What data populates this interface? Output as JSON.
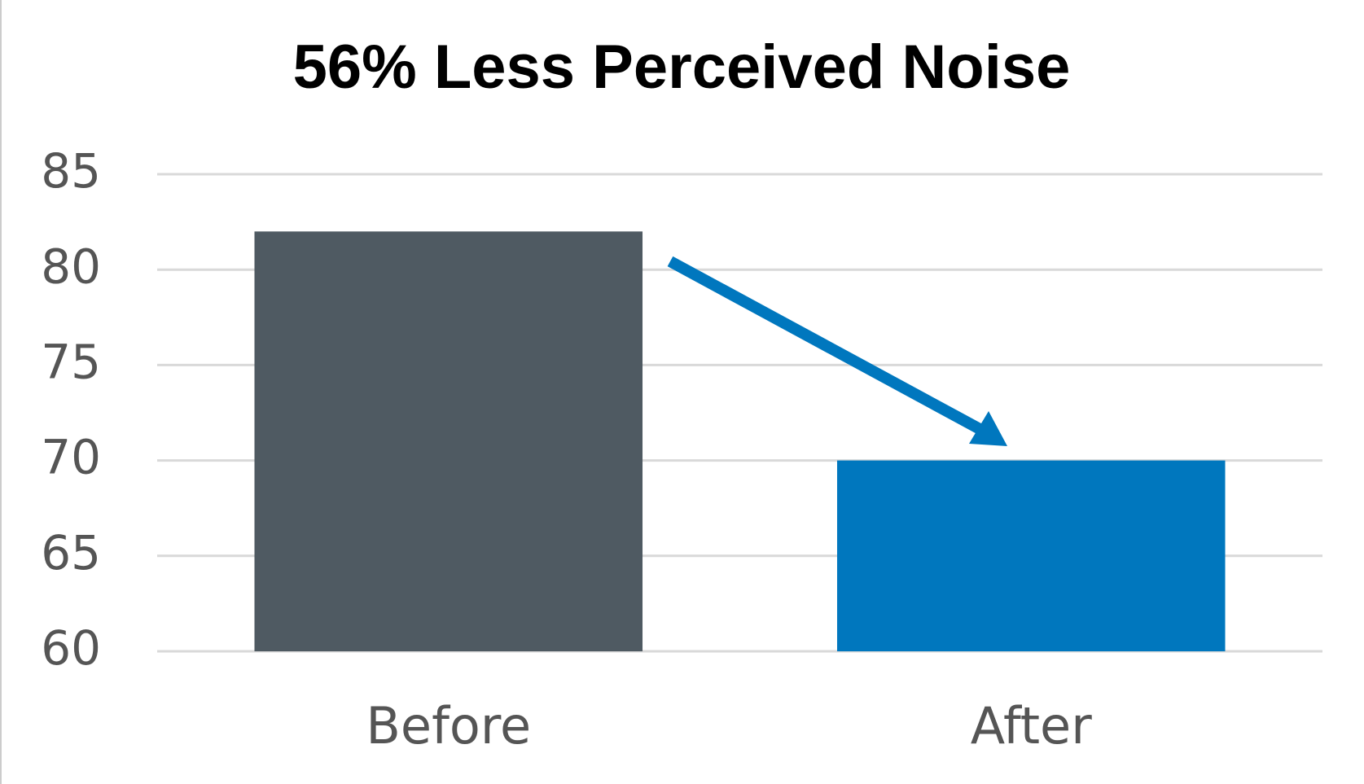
{
  "chart_data": {
    "type": "bar",
    "title": "56% Less Perceived Noise",
    "categories": [
      "Before",
      "After"
    ],
    "values": [
      82,
      70
    ],
    "colors": [
      "#4f5a62",
      "#0077be"
    ],
    "ylim": [
      60,
      85
    ],
    "yticks": [
      60,
      65,
      70,
      75,
      80,
      85
    ],
    "grid": true
  }
}
